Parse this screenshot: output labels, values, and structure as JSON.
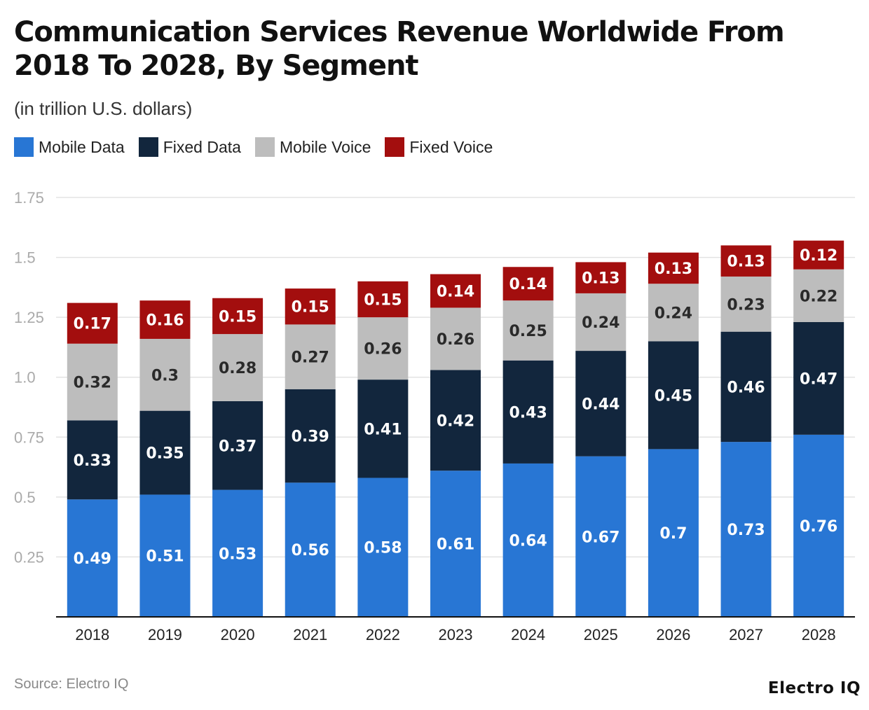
{
  "title": "Communication Services Revenue Worldwide From 2018 To 2028, By Segment",
  "subtitle": "(in trillion U.S. dollars)",
  "source": "Source: Electro IQ",
  "logo": "Electro IQ",
  "chart_data": {
    "type": "bar",
    "stacked": true,
    "categories": [
      "2018",
      "2019",
      "2020",
      "2021",
      "2022",
      "2023",
      "2024",
      "2025",
      "2026",
      "2027",
      "2028"
    ],
    "series": [
      {
        "name": "Mobile Data",
        "color": "#2876d4",
        "values": [
          0.49,
          0.51,
          0.53,
          0.56,
          0.58,
          0.61,
          0.64,
          0.67,
          0.7,
          0.73,
          0.76
        ]
      },
      {
        "name": "Fixed Data",
        "color": "#12263d",
        "values": [
          0.33,
          0.35,
          0.37,
          0.39,
          0.41,
          0.42,
          0.43,
          0.44,
          0.45,
          0.46,
          0.47
        ]
      },
      {
        "name": "Mobile Voice",
        "color": "#bdbdbd",
        "values": [
          0.32,
          0.3,
          0.28,
          0.27,
          0.26,
          0.26,
          0.25,
          0.24,
          0.24,
          0.23,
          0.22
        ]
      },
      {
        "name": "Fixed Voice",
        "color": "#a30e0e",
        "values": [
          0.17,
          0.16,
          0.15,
          0.15,
          0.15,
          0.14,
          0.14,
          0.13,
          0.13,
          0.13,
          0.12
        ]
      }
    ],
    "yticks": [
      "0.25",
      "0.5",
      "0.75",
      "1.0",
      "1.25",
      "1.5",
      "1.75"
    ],
    "ylim": [
      0,
      1.75
    ],
    "grid": true,
    "legend": "top-left"
  }
}
